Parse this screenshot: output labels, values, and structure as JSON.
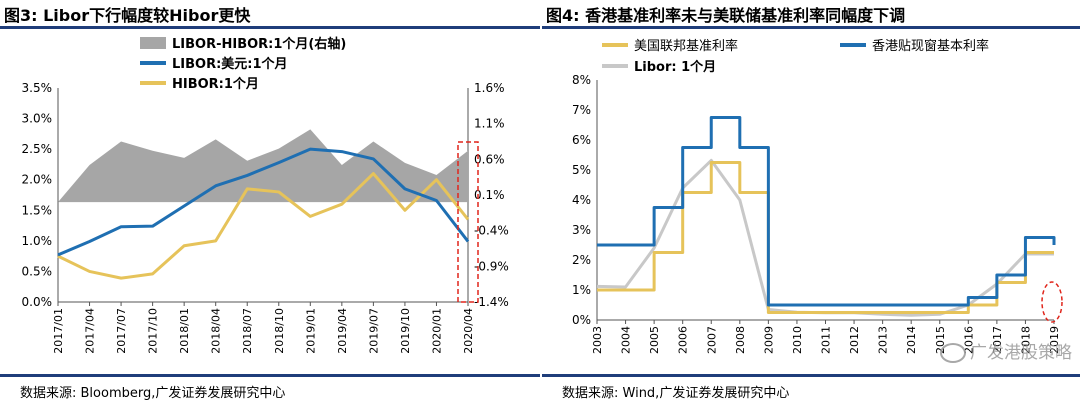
{
  "left_panel": {
    "title": "图3:  Libor下行幅度较Hibor更快",
    "source": "数据来源:  Bloomberg,广发证券发展研究中心"
  },
  "right_panel": {
    "title": "图4:  香港基准利率未与美联储基准利率同幅度下调",
    "source": "数据来源:  Wind,广发证券发展研究中心"
  },
  "watermark": "广发港股策略",
  "colors": {
    "blue": "#1f6fb2",
    "gold": "#e6c35a",
    "gray_area": "#a6a6a6",
    "light_gray": "#c8c8c8",
    "dash_red": "#e0251b",
    "header_rule": "#1f3d7a"
  },
  "chart_data": [
    {
      "type": "line",
      "title": "Libor下行幅度较Hibor更快",
      "x": [
        "2017/01",
        "2017/04",
        "2017/07",
        "2017/10",
        "2018/01",
        "2018/04",
        "2018/07",
        "2018/10",
        "2019/01",
        "2019/04",
        "2019/07",
        "2019/10",
        "2020/01",
        "2020/04"
      ],
      "x_ticks": [
        "2017/01",
        "2017/04",
        "2017/07",
        "2017/10",
        "2018/01",
        "2018/04",
        "2018/07",
        "2018/10",
        "2019/01",
        "2019/04",
        "2019/07",
        "2019/10",
        "2020/01",
        "2020/04"
      ],
      "y_left_ticks": [
        "0.0%",
        "0.5%",
        "1.0%",
        "1.5%",
        "2.0%",
        "2.5%",
        "3.0%",
        "3.5%"
      ],
      "y_left_range": [
        0,
        3.5
      ],
      "y_right_ticks": [
        "-1.4%",
        "-0.9%",
        "-0.4%",
        "0.1%",
        "0.6%",
        "1.1%",
        "1.6%"
      ],
      "y_right_range": [
        -1.4,
        1.6
      ],
      "legend_position": "top-center",
      "series": [
        {
          "name": "LIBOR-HIBOR:1个月(右轴)",
          "kind": "area",
          "axis": "right",
          "values": [
            0.0,
            0.52,
            0.85,
            0.72,
            0.62,
            0.88,
            0.58,
            0.75,
            1.02,
            0.52,
            0.85,
            0.55,
            0.38,
            0.72
          ]
        },
        {
          "name": "LIBOR:美元:1个月",
          "kind": "line",
          "axis": "left",
          "values": [
            0.77,
            0.99,
            1.23,
            1.24,
            1.57,
            1.9,
            2.07,
            2.28,
            2.5,
            2.46,
            2.34,
            1.85,
            1.66,
            0.99
          ]
        },
        {
          "name": "HIBOR:1个月",
          "kind": "line",
          "axis": "left",
          "values": [
            0.75,
            0.5,
            0.39,
            0.46,
            0.92,
            1.0,
            1.85,
            1.8,
            1.4,
            1.6,
            2.1,
            1.5,
            2.0,
            1.35
          ]
        }
      ],
      "annotation": "dashed red box around 2020/03-2020/04"
    },
    {
      "type": "line",
      "title": "香港基准利率未与美联储基准利率同幅度下调",
      "x": [
        "2003",
        "2004",
        "2005",
        "2006",
        "2007",
        "2008",
        "2009",
        "2010",
        "2011",
        "2012",
        "2013",
        "2014",
        "2015",
        "2016",
        "2017",
        "2018",
        "2019"
      ],
      "x_ticks": [
        "2003",
        "2004",
        "2005",
        "2006",
        "2007",
        "2008",
        "2009",
        "2010",
        "2011",
        "2012",
        "2013",
        "2014",
        "2015",
        "2016",
        "2017",
        "2018",
        "2019"
      ],
      "y_ticks": [
        "0%",
        "1%",
        "2%",
        "3%",
        "4%",
        "5%",
        "6%",
        "7%",
        "8%"
      ],
      "y_range": [
        0,
        8
      ],
      "legend_position": "top",
      "series": [
        {
          "name": "美国联邦基准利率",
          "kind": "line",
          "values": [
            1.0,
            1.0,
            2.25,
            4.25,
            5.25,
            4.25,
            0.25,
            0.25,
            0.25,
            0.25,
            0.25,
            0.25,
            0.25,
            0.5,
            1.25,
            2.25,
            2.25
          ]
        },
        {
          "name": "香港贴现窗基本利率",
          "kind": "line",
          "values": [
            2.5,
            2.5,
            3.75,
            5.75,
            6.75,
            5.75,
            0.5,
            0.5,
            0.5,
            0.5,
            0.5,
            0.5,
            0.5,
            0.75,
            1.5,
            2.75,
            2.5
          ]
        },
        {
          "name": "Libor: 1个月",
          "kind": "line",
          "values": [
            1.12,
            1.1,
            2.4,
            4.4,
            5.32,
            4.0,
            0.35,
            0.26,
            0.24,
            0.24,
            0.19,
            0.16,
            0.19,
            0.5,
            1.2,
            2.2,
            2.2
          ]
        }
      ],
      "annotation": "dashed red ellipse at 2020 year-end"
    }
  ]
}
